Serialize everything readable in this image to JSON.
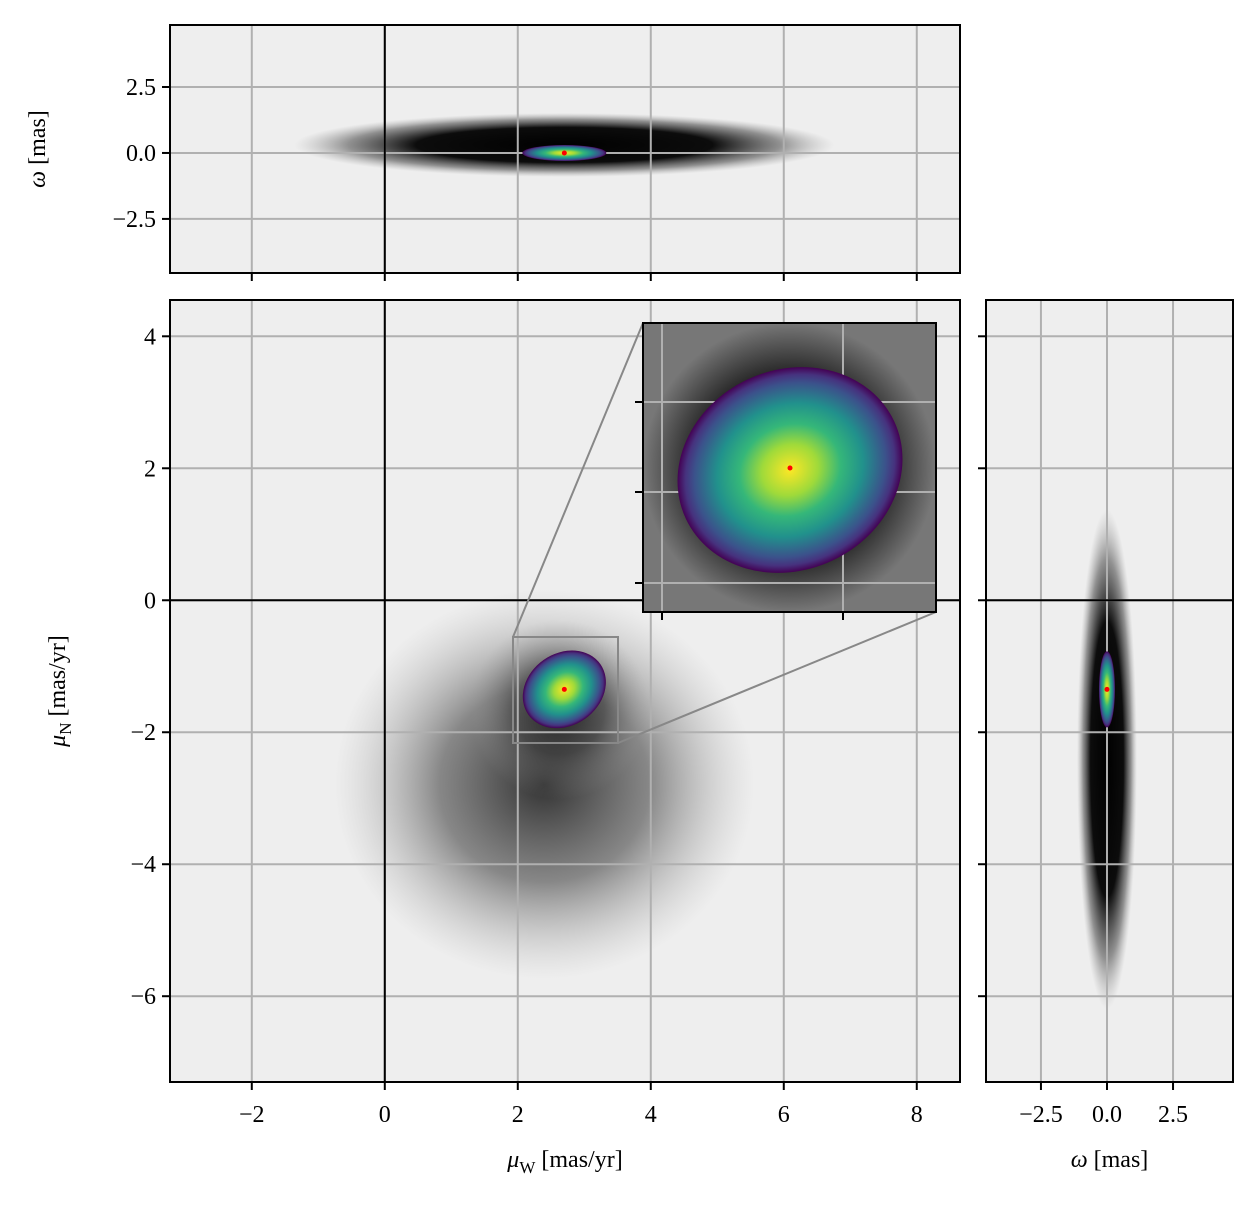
{
  "chart_data": [
    {
      "type": "scatter",
      "ylabel": {
        "symbol": "ω",
        "unit": "[mas]"
      },
      "ylim": [
        -4.55,
        4.85
      ],
      "yticks": [
        {
          "value": -2.5,
          "label": "−2.5"
        },
        {
          "value": 0,
          "label": "0.0"
        },
        2.5
      ],
      "x": [
        2.7
      ],
      "y": [
        0
      ],
      "color": "#ff0000",
      "grid": true,
      "zero_lines": true
    },
    {
      "type": "scatter",
      "xlabel": {
        "symbol": "μ",
        "sub": "W",
        "unit": "[mas/yr]"
      },
      "ylabel": {
        "symbol": "μ",
        "sub": "N",
        "unit": "[mas/yr]"
      },
      "xlim": [
        -3.23,
        8.65
      ],
      "xticks": [
        {
          "value": -2,
          "label": "−2"
        },
        0,
        2,
        4,
        6,
        8
      ],
      "ylim": [
        -7.3,
        4.55
      ],
      "yticks": [
        {
          "value": -6,
          "label": "−6"
        },
        {
          "value": -4,
          "label": "−4"
        },
        {
          "value": -2,
          "label": "−2"
        },
        0,
        2,
        4
      ],
      "x": [
        2.7
      ],
      "y": [
        -1.35
      ],
      "color": "#ff0000",
      "grid": true,
      "zero_lines": true
    },
    {
      "type": "scatter",
      "xlabel": {
        "symbol": "ω",
        "unit": "[mas]"
      },
      "xlim": [
        -4.58,
        4.77
      ],
      "xticks": [
        {
          "value": -2.5,
          "label": "−2.5"
        },
        {
          "value": 0,
          "label": "0.0"
        },
        2.5
      ],
      "x": [
        0
      ],
      "y": [
        -1.35
      ],
      "color": "#ff0000",
      "grid": true,
      "zero_lines": true
    }
  ]
}
